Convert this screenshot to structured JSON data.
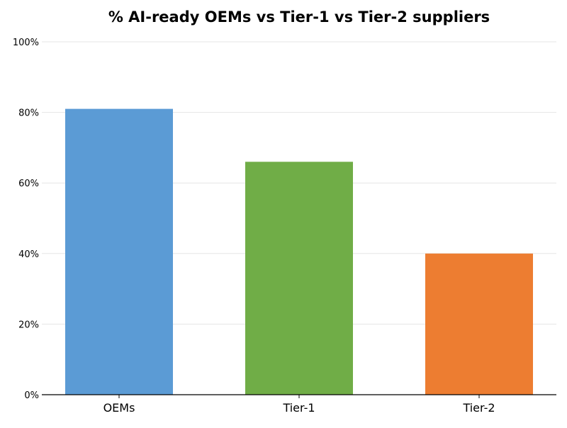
{
  "chart_data": {
    "type": "bar",
    "title": "% AI-ready OEMs vs Tier-1 vs Tier-2 suppliers",
    "xlabel": "",
    "ylabel": "",
    "categories": [
      "OEMs",
      "Tier-1",
      "Tier-2"
    ],
    "values": [
      81,
      66,
      40
    ],
    "colors": [
      "#5b9bd5",
      "#70ad47",
      "#ed7d31"
    ],
    "ylim": [
      0,
      100
    ],
    "yticks": [
      0,
      20,
      40,
      60,
      80,
      100
    ],
    "ytick_labels": [
      "0%",
      "20%",
      "40%",
      "60%",
      "80%",
      "100%"
    ],
    "grid": "horizontal",
    "legend": "none"
  }
}
